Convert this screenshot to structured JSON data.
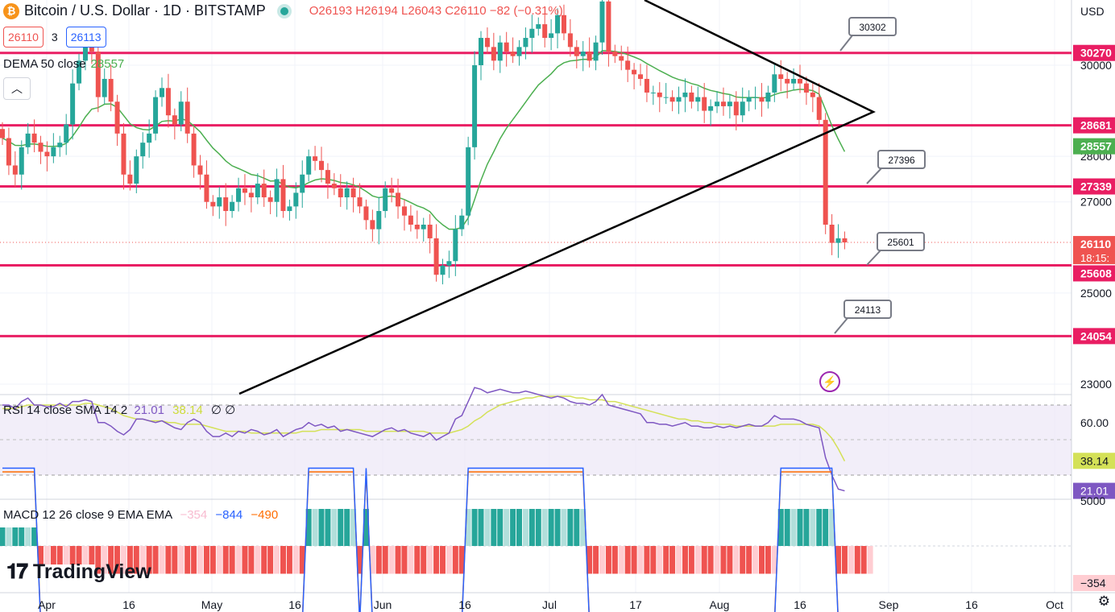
{
  "header": {
    "title": "Bitcoin / U.S. Dollar · 1D · BITSTAMP",
    "ohlc": "O26193 H26194 L26043 C26110 −82 (−0.31%)",
    "bid": "26110",
    "spread": "3",
    "ask": "26113",
    "currency": "USD",
    "coin_icon": "bitcoin-icon"
  },
  "indicators": {
    "dema_label": "DEMA 50 close",
    "dema_value": "28557",
    "rsi_label": "RSI 14 close SMA 14 2",
    "rsi_value": "21.01",
    "rsi_sma_value": "38.14",
    "rsi_extra": "∅ ∅",
    "macd_label": "MACD 12 26 close 9 EMA EMA",
    "macd_hist_value": "−354",
    "macd_value": "−844",
    "macd_signal_value": "−490"
  },
  "brand": {
    "name": "TradingView"
  },
  "chart_data": {
    "type": "candlestick",
    "xticks": [
      "Apr",
      "16",
      "May",
      "16",
      "Jun",
      "16",
      "Jul",
      "17",
      "Aug",
      "16",
      "Sep",
      "16",
      "Oct"
    ],
    "yticks": [
      "30000",
      "28000",
      "27000",
      "25000",
      "23000"
    ],
    "ylim": [
      22600,
      31700
    ],
    "horizontal_levels": [
      30270,
      28681,
      27339,
      25608,
      24054
    ],
    "level_labels": [
      "30270",
      "28681",
      "28557",
      "27339",
      "26110",
      "25608",
      "24054"
    ],
    "countdown": "18:15:",
    "callouts": [
      "30302",
      "27396",
      "25601",
      "24113"
    ],
    "rsi_axis": [
      "60.00"
    ],
    "rsi_labels": [
      "38.14",
      "21.01"
    ],
    "macd_axis": [
      "5000",
      "−354"
    ],
    "colors": {
      "up": "#26a69a",
      "down": "#ef5350",
      "level": "#e91e63",
      "dema": "#4caf50",
      "rsi": "#7e57c2",
      "rsi_sma": "#d4e157",
      "macd": "#2962ff",
      "signal": "#ff6d00"
    },
    "closes": [
      28400,
      27800,
      27600,
      28200,
      28500,
      28300,
      28100,
      28000,
      28200,
      28300,
      28700,
      29600,
      30100,
      30500,
      30300,
      29300,
      29700,
      29200,
      28500,
      27600,
      27400,
      28000,
      28300,
      28500,
      29300,
      29500,
      28900,
      28700,
      29200,
      28500,
      27800,
      27600,
      27000,
      26900,
      27100,
      26800,
      27000,
      27300,
      27200,
      27100,
      27400,
      27100,
      27000,
      27500,
      26800,
      26900,
      27200,
      27600,
      28000,
      27900,
      27700,
      27400,
      27300,
      27100,
      27300,
      27100,
      26900,
      26600,
      26400,
      26800,
      27300,
      27200,
      26900,
      26700,
      26500,
      26400,
      26500,
      26200,
      25400,
      25600,
      25700,
      26400,
      26700,
      28200,
      30000,
      30600,
      30400,
      30100,
      30500,
      30300,
      30200,
      30400,
      30600,
      30800,
      30900,
      30600,
      30700,
      31100,
      30700,
      30400,
      30200,
      30300,
      30100,
      30500,
      31400,
      30300,
      30200,
      30100,
      29900,
      29800,
      29700,
      29400,
      29400,
      29300,
      29300,
      29200,
      29300,
      29400,
      29200,
      29300,
      29000,
      29100,
      29200,
      29100,
      29200,
      28900,
      29200,
      29300,
      29300,
      29200,
      29400,
      29800,
      29700,
      29600,
      29700,
      29600,
      29400,
      29300,
      28800,
      26500,
      26100,
      26200,
      26110
    ],
    "rsi": [
      70,
      70,
      68,
      72,
      74,
      70,
      70,
      69,
      69,
      71,
      69,
      72,
      72,
      73,
      72,
      60,
      60,
      58,
      55,
      53,
      56,
      62,
      62,
      61,
      60,
      61,
      59,
      57,
      56,
      60,
      62,
      60,
      55,
      52,
      52,
      54,
      52,
      55,
      54,
      56,
      55,
      53,
      54,
      56,
      52,
      54,
      56,
      57,
      60,
      58,
      59,
      57,
      58,
      55,
      56,
      55,
      54,
      53,
      52,
      54,
      56,
      57,
      55,
      56,
      54,
      53,
      52,
      54,
      50,
      52,
      54,
      62,
      64,
      72,
      80,
      79,
      77,
      78,
      79,
      78,
      77,
      77,
      78,
      77,
      76,
      75,
      74,
      75,
      74,
      72,
      71,
      71,
      70,
      72,
      76,
      70,
      69,
      68,
      67,
      66,
      65,
      60,
      60,
      59,
      59,
      58,
      59,
      60,
      58,
      58,
      57,
      57,
      58,
      57,
      58,
      57,
      58,
      59,
      58,
      58,
      60,
      64,
      62,
      62,
      62,
      61,
      59,
      58,
      57,
      40,
      30,
      22,
      21
    ],
    "rsi_sma": [
      68,
      68,
      68,
      69,
      70,
      70,
      70,
      70,
      70,
      70,
      70,
      70,
      70,
      71,
      71,
      70,
      69,
      68,
      66,
      64,
      63,
      62,
      62,
      61,
      61,
      61,
      60,
      60,
      59,
      59,
      59,
      59,
      58,
      57,
      56,
      55,
      55,
      55,
      55,
      54,
      54,
      54,
      54,
      54,
      54,
      54,
      54,
      55,
      55,
      55,
      56,
      56,
      56,
      56,
      56,
      56,
      56,
      55,
      55,
      55,
      55,
      55,
      55,
      55,
      55,
      55,
      55,
      54,
      54,
      54,
      54,
      55,
      56,
      58,
      61,
      63,
      66,
      68,
      70,
      71,
      72,
      73,
      74,
      74,
      75,
      75,
      75,
      75,
      75,
      75,
      74,
      74,
      73,
      73,
      73,
      72,
      72,
      71,
      70,
      69,
      68,
      67,
      66,
      65,
      64,
      63,
      62,
      62,
      61,
      61,
      60,
      60,
      59,
      59,
      59,
      58,
      58,
      58,
      58,
      58,
      58,
      58,
      59,
      59,
      59,
      59,
      59,
      59,
      58,
      55,
      51,
      45,
      38
    ],
    "macd_hist": [
      10,
      10,
      10,
      10,
      10,
      10,
      -10,
      -10,
      -10,
      -10,
      -10,
      -10,
      -10,
      -10,
      -10,
      -15,
      -15,
      -15,
      -15,
      -15,
      -15,
      -15,
      -15,
      -15,
      -15,
      -15,
      -15,
      -15,
      -15,
      -15,
      -15,
      -15,
      -15,
      -15,
      -15,
      -15,
      -15,
      -15,
      -15,
      -15,
      -15,
      -15,
      -15,
      -15,
      -15,
      -15,
      -15,
      -15,
      20,
      20,
      20,
      20,
      20,
      20,
      20,
      20,
      -15,
      20,
      -15,
      -15,
      -15,
      -15,
      -15,
      -15,
      -15,
      -15,
      -15,
      -15,
      -15,
      -15,
      -15,
      -15,
      -15,
      20,
      20,
      20,
      20,
      20,
      20,
      20,
      20,
      20,
      20,
      20,
      20,
      20,
      20,
      20,
      20,
      20,
      20,
      20,
      -15,
      -15,
      -15,
      -15,
      -15,
      -15,
      -15,
      -15,
      -15,
      -15,
      -15,
      -15,
      -15,
      -15,
      -15,
      -15,
      -15,
      -15,
      -15,
      -15,
      -15,
      -15,
      -15,
      -15,
      -15,
      -15,
      -15,
      -15,
      -15,
      -15,
      20,
      20,
      20,
      20,
      20,
      20,
      20,
      20,
      20,
      -15,
      -15,
      -15,
      -15,
      -15,
      -15
    ]
  }
}
